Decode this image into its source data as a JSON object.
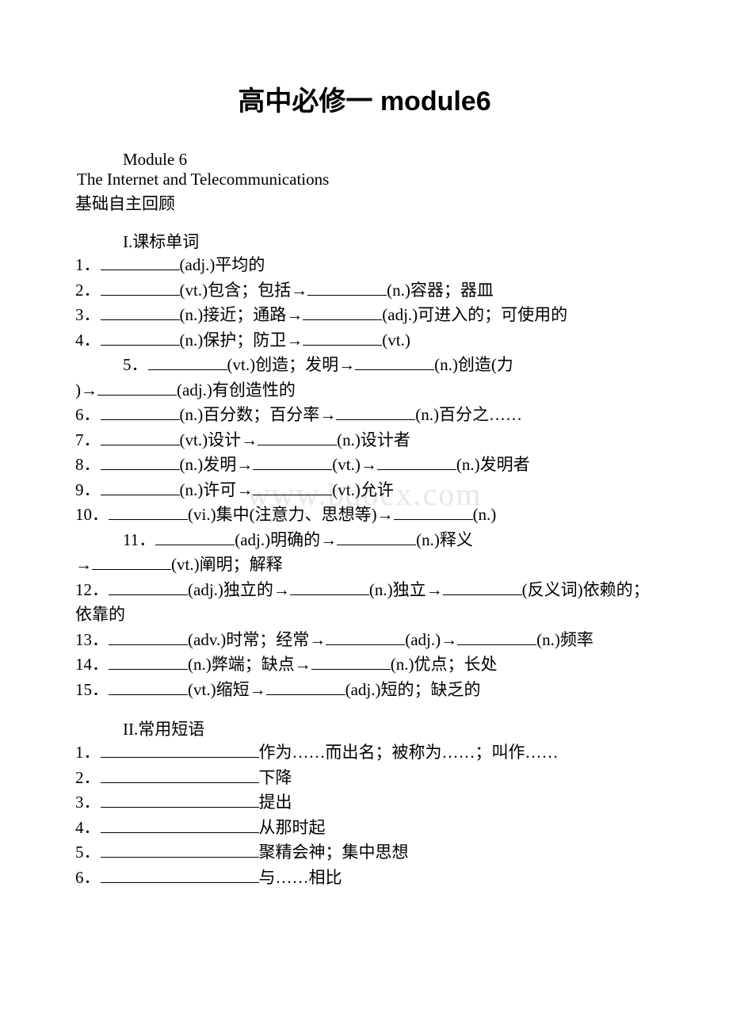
{
  "title": "高中必修一 module6",
  "module": "Module 6",
  "subtitle": "The Internet and Telecommunications",
  "section_heading": "基础自主回顾",
  "section1": {
    "label": "I.课标单词",
    "items": [
      {
        "num": "1．",
        "parts": [
          "(adj.)平均的"
        ]
      },
      {
        "num": "2．",
        "parts": [
          "(vt.)包含；包括→",
          "(n.)容器；器皿"
        ]
      },
      {
        "num": "3．",
        "parts": [
          "(n.)接近；通路→",
          "(adj.)可进入的；可使用的"
        ]
      },
      {
        "num": "4．",
        "parts": [
          "(n.)保护；防卫→",
          "(vt.)"
        ]
      },
      {
        "num": "5．",
        "indent": true,
        "parts": [
          "(vt.)创造；发明→",
          "(n.)创造(力"
        ],
        "cont": ")→__________(adj.)有创造性的"
      },
      {
        "num": "6．",
        "parts": [
          "(n.)百分数；百分率→",
          "(n.)百分之……"
        ]
      },
      {
        "num": "7．",
        "parts": [
          "(vt.)设计→",
          "(n.)设计者"
        ]
      },
      {
        "num": "8．",
        "parts": [
          "(n.)发明→",
          "(vt.)→",
          "(n.)发明者"
        ]
      },
      {
        "num": "9．",
        "parts": [
          "(n.)许可→",
          "(vt.)允许"
        ]
      },
      {
        "num": "10．",
        "parts": [
          "(vi.)集中(注意力、思想等)→",
          "(n.)"
        ]
      },
      {
        "num": "11．",
        "indent": true,
        "parts": [
          "(adj.)明确的→",
          "(n.)释义"
        ],
        "cont": "→__________(vt.)阐明；解释"
      },
      {
        "num": "12．",
        "parts": [
          "(adj.)独立的→",
          "(n.)独立→",
          "(反义词)依赖的；依靠的"
        ],
        "wrap": true
      },
      {
        "num": "13．",
        "parts": [
          "(adv.)时常；经常→",
          "(adj.)→",
          "(n.)频率"
        ],
        "wrap": true
      },
      {
        "num": "14．",
        "parts": [
          "(n.)弊端；缺点→",
          "(n.)优点；长处"
        ]
      },
      {
        "num": "15．",
        "parts": [
          "(vt.)缩短→",
          "(adj.)短的；缺乏的"
        ]
      }
    ]
  },
  "section2": {
    "label": "II.常用短语",
    "items": [
      {
        "num": "1．",
        "text": "作为……而出名；被称为……；叫作……"
      },
      {
        "num": "2．",
        "text": "下降"
      },
      {
        "num": "3．",
        "text": "提出"
      },
      {
        "num": "4．",
        "text": "从那时起"
      },
      {
        "num": "5．",
        "text": "聚精会神；集中思想"
      },
      {
        "num": "6．",
        "text": "与……相比"
      }
    ]
  },
  "watermark": "www.bdocx.com"
}
